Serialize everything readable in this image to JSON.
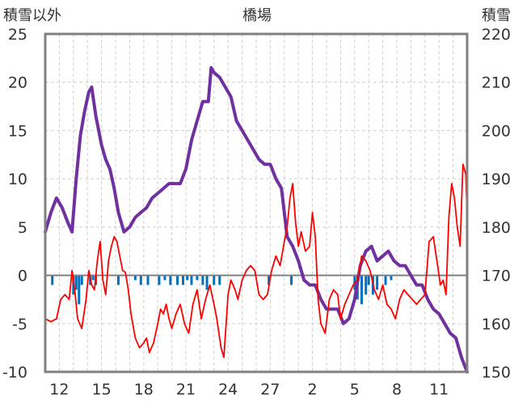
{
  "chart_data": {
    "type": "line",
    "title": "橋場",
    "left_axis_label": "積雪以外",
    "right_axis_label": "積雪",
    "left_ylim": [
      -10,
      25
    ],
    "left_yticks": [
      -10,
      -5,
      0,
      5,
      10,
      15,
      20,
      25
    ],
    "right_ylim": [
      150,
      220
    ],
    "right_yticks": [
      150,
      160,
      170,
      180,
      190,
      200,
      210,
      220
    ],
    "x_day_range": [
      0,
      30.0
    ],
    "x_ticks": [
      {
        "label": "12",
        "day": 1.0
      },
      {
        "label": "15",
        "day": 4.0
      },
      {
        "label": "18",
        "day": 7.0
      },
      {
        "label": "21",
        "day": 10.0
      },
      {
        "label": "24",
        "day": 13.0
      },
      {
        "label": "27",
        "day": 16.0
      },
      {
        "label": "2",
        "day": 19.0
      },
      {
        "label": "5",
        "day": 22.0
      },
      {
        "label": "8",
        "day": 25.0
      },
      {
        "label": "11",
        "day": 28.0
      }
    ],
    "x_minor_days": [
      0,
      1,
      2,
      3,
      4,
      5,
      6,
      7,
      8,
      9,
      10,
      11,
      12,
      13,
      14,
      15,
      16,
      17,
      18,
      19,
      20,
      21,
      22,
      23,
      24,
      25,
      26,
      27,
      28,
      29
    ],
    "grid": true,
    "series": [
      {
        "axis": "right",
        "color": "#7030a0",
        "points": [
          [
            0.0,
            179
          ],
          [
            0.4,
            183
          ],
          [
            0.8,
            186
          ],
          [
            1.2,
            184
          ],
          [
            1.6,
            181
          ],
          [
            1.9,
            179
          ],
          [
            2.2,
            190
          ],
          [
            2.5,
            199
          ],
          [
            2.8,
            204
          ],
          [
            3.1,
            208
          ],
          [
            3.3,
            209
          ],
          [
            3.6,
            203
          ],
          [
            4.0,
            197
          ],
          [
            4.3,
            194
          ],
          [
            4.6,
            192
          ],
          [
            4.9,
            188
          ],
          [
            5.2,
            183
          ],
          [
            5.6,
            179
          ],
          [
            6.0,
            180
          ],
          [
            6.4,
            182
          ],
          [
            6.8,
            183
          ],
          [
            7.2,
            184
          ],
          [
            7.6,
            186
          ],
          [
            8.0,
            187
          ],
          [
            8.4,
            188
          ],
          [
            8.8,
            189
          ],
          [
            9.2,
            189
          ],
          [
            9.6,
            189
          ],
          [
            10.0,
            192
          ],
          [
            10.4,
            198
          ],
          [
            10.8,
            202
          ],
          [
            11.2,
            206
          ],
          [
            11.6,
            206
          ],
          [
            11.8,
            213
          ],
          [
            12.0,
            212
          ],
          [
            12.4,
            211
          ],
          [
            12.8,
            209
          ],
          [
            13.2,
            207
          ],
          [
            13.6,
            202
          ],
          [
            14.0,
            200
          ],
          [
            14.4,
            198
          ],
          [
            14.8,
            196
          ],
          [
            15.2,
            194
          ],
          [
            15.6,
            193
          ],
          [
            16.0,
            193
          ],
          [
            16.4,
            190
          ],
          [
            16.8,
            188
          ],
          [
            17.2,
            178
          ],
          [
            17.6,
            176
          ],
          [
            18.0,
            173
          ],
          [
            18.4,
            169
          ],
          [
            18.8,
            168
          ],
          [
            19.2,
            168
          ],
          [
            19.6,
            165
          ],
          [
            20.0,
            163
          ],
          [
            20.4,
            163
          ],
          [
            20.8,
            163
          ],
          [
            21.2,
            160
          ],
          [
            21.6,
            161
          ],
          [
            22.0,
            165
          ],
          [
            22.4,
            172
          ],
          [
            22.8,
            175
          ],
          [
            23.2,
            176
          ],
          [
            23.6,
            173
          ],
          [
            24.0,
            174
          ],
          [
            24.4,
            175
          ],
          [
            24.8,
            173
          ],
          [
            25.2,
            172
          ],
          [
            25.6,
            172
          ],
          [
            26.0,
            170
          ],
          [
            26.4,
            168
          ],
          [
            26.8,
            168
          ],
          [
            27.2,
            165
          ],
          [
            27.6,
            163
          ],
          [
            28.0,
            162
          ],
          [
            28.4,
            160
          ],
          [
            28.8,
            158
          ],
          [
            29.2,
            157
          ],
          [
            29.6,
            153
          ],
          [
            30.0,
            150
          ]
        ]
      },
      {
        "axis": "left",
        "color": "#ff0000",
        "points": [
          [
            0.0,
            -4.5
          ],
          [
            0.4,
            -4.8
          ],
          [
            0.8,
            -4.5
          ],
          [
            1.1,
            -2.5
          ],
          [
            1.4,
            -2.0
          ],
          [
            1.7,
            -2.5
          ],
          [
            1.9,
            0.5
          ],
          [
            2.1,
            -1.5
          ],
          [
            2.3,
            -4.5
          ],
          [
            2.6,
            -5.5
          ],
          [
            2.9,
            -2.5
          ],
          [
            3.1,
            0.5
          ],
          [
            3.3,
            -1.0
          ],
          [
            3.5,
            -1.5
          ],
          [
            3.7,
            1.5
          ],
          [
            3.9,
            3.5
          ],
          [
            4.1,
            -0.5
          ],
          [
            4.3,
            -2.0
          ],
          [
            4.5,
            1.5
          ],
          [
            4.7,
            3.0
          ],
          [
            4.9,
            4.0
          ],
          [
            5.1,
            3.5
          ],
          [
            5.3,
            2.0
          ],
          [
            5.5,
            0.5
          ],
          [
            5.7,
            0.3
          ],
          [
            5.9,
            -1.5
          ],
          [
            6.1,
            -4.0
          ],
          [
            6.4,
            -6.5
          ],
          [
            6.7,
            -7.5
          ],
          [
            7.0,
            -7.0
          ],
          [
            7.2,
            -6.5
          ],
          [
            7.4,
            -8.0
          ],
          [
            7.7,
            -7.0
          ],
          [
            8.0,
            -5.0
          ],
          [
            8.2,
            -3.5
          ],
          [
            8.4,
            -4.0
          ],
          [
            8.6,
            -3.0
          ],
          [
            8.8,
            -4.5
          ],
          [
            9.0,
            -5.5
          ],
          [
            9.3,
            -4.0
          ],
          [
            9.6,
            -3.0
          ],
          [
            9.9,
            -5.0
          ],
          [
            10.2,
            -6.0
          ],
          [
            10.5,
            -3.0
          ],
          [
            10.8,
            -1.5
          ],
          [
            11.1,
            -4.5
          ],
          [
            11.4,
            -2.5
          ],
          [
            11.7,
            -1.0
          ],
          [
            12.0,
            -3.0
          ],
          [
            12.2,
            -4.5
          ],
          [
            12.5,
            -7.5
          ],
          [
            12.7,
            -8.5
          ],
          [
            13.0,
            -2.0
          ],
          [
            13.2,
            -0.5
          ],
          [
            13.5,
            -1.5
          ],
          [
            13.7,
            -2.5
          ],
          [
            14.0,
            -0.5
          ],
          [
            14.3,
            0.5
          ],
          [
            14.6,
            1.0
          ],
          [
            14.9,
            0.5
          ],
          [
            15.2,
            -2.0
          ],
          [
            15.5,
            -2.5
          ],
          [
            15.8,
            -2.0
          ],
          [
            16.1,
            0.5
          ],
          [
            16.4,
            2.0
          ],
          [
            16.7,
            1.0
          ],
          [
            17.0,
            3.5
          ],
          [
            17.2,
            5.0
          ],
          [
            17.4,
            8.0
          ],
          [
            17.6,
            9.5
          ],
          [
            17.8,
            5.5
          ],
          [
            18.0,
            3.0
          ],
          [
            18.2,
            4.5
          ],
          [
            18.5,
            2.5
          ],
          [
            18.8,
            3.0
          ],
          [
            19.0,
            6.5
          ],
          [
            19.2,
            4.0
          ],
          [
            19.4,
            -2.5
          ],
          [
            19.6,
            -5.0
          ],
          [
            19.9,
            -6.0
          ],
          [
            20.2,
            -2.5
          ],
          [
            20.5,
            -1.5
          ],
          [
            20.8,
            -2.0
          ],
          [
            21.0,
            -4.5
          ],
          [
            21.3,
            -3.0
          ],
          [
            21.6,
            -2.0
          ],
          [
            21.9,
            -1.0
          ],
          [
            22.2,
            -0.5
          ],
          [
            22.5,
            2.0
          ],
          [
            22.8,
            1.5
          ],
          [
            23.1,
            0.5
          ],
          [
            23.4,
            -1.5
          ],
          [
            23.7,
            -2.5
          ],
          [
            24.0,
            -1.0
          ],
          [
            24.3,
            -3.0
          ],
          [
            24.6,
            -3.5
          ],
          [
            24.9,
            -4.5
          ],
          [
            25.2,
            -2.5
          ],
          [
            25.5,
            -1.5
          ],
          [
            25.8,
            -2.0
          ],
          [
            26.1,
            -2.5
          ],
          [
            26.4,
            -3.0
          ],
          [
            26.7,
            -2.5
          ],
          [
            27.0,
            -2.0
          ],
          [
            27.3,
            3.5
          ],
          [
            27.6,
            4.0
          ],
          [
            27.9,
            1.0
          ],
          [
            28.1,
            -1.0
          ],
          [
            28.3,
            -0.5
          ],
          [
            28.5,
            -2.0
          ],
          [
            28.7,
            6.0
          ],
          [
            28.9,
            9.5
          ],
          [
            29.1,
            8.0
          ],
          [
            29.3,
            5.0
          ],
          [
            29.5,
            3.0
          ],
          [
            29.7,
            11.5
          ],
          [
            29.9,
            10.5
          ],
          [
            30.0,
            6.0
          ]
        ]
      }
    ],
    "bars": {
      "axis": "left",
      "color": "#0070c0",
      "items": [
        [
          0.5,
          -1.0
        ],
        [
          2.0,
          -2.0
        ],
        [
          2.2,
          -1.5
        ],
        [
          2.4,
          -3.0
        ],
        [
          2.6,
          -1.0
        ],
        [
          3.2,
          -1.0
        ],
        [
          3.4,
          -0.5
        ],
        [
          3.6,
          -1.0
        ],
        [
          5.2,
          -1.0
        ],
        [
          6.4,
          -0.5
        ],
        [
          6.8,
          -1.0
        ],
        [
          7.3,
          -1.0
        ],
        [
          8.1,
          -1.0
        ],
        [
          8.5,
          -0.5
        ],
        [
          8.9,
          -1.0
        ],
        [
          9.4,
          -1.0
        ],
        [
          9.8,
          -1.0
        ],
        [
          10.1,
          -0.5
        ],
        [
          10.4,
          -1.0
        ],
        [
          10.8,
          -0.5
        ],
        [
          11.2,
          -1.0
        ],
        [
          11.5,
          -1.5
        ],
        [
          12.0,
          -1.0
        ],
        [
          12.4,
          -1.0
        ],
        [
          15.9,
          -1.0
        ],
        [
          17.5,
          -1.0
        ],
        [
          22.0,
          -1.5
        ],
        [
          22.2,
          -2.5
        ],
        [
          22.5,
          -3.0
        ],
        [
          22.8,
          -2.0
        ],
        [
          23.0,
          -1.0
        ],
        [
          23.3,
          -2.0
        ],
        [
          23.6,
          -1.5
        ],
        [
          24.2,
          -1.0
        ],
        [
          24.6,
          -0.5
        ]
      ]
    }
  }
}
